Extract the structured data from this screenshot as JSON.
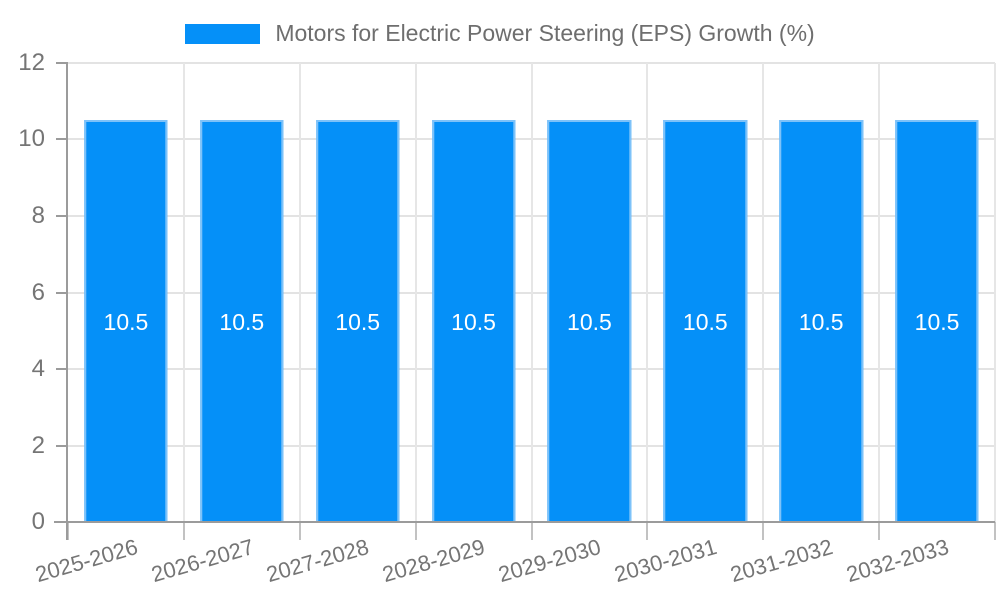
{
  "chart_data": {
    "type": "bar",
    "title": "Motors for Electric Power Steering (EPS) Growth (%)",
    "categories": [
      "2025-2026",
      "2026-2027",
      "2027-2028",
      "2028-2029",
      "2029-2030",
      "2030-2031",
      "2031-2032",
      "2032-2033"
    ],
    "values": [
      10.5,
      10.5,
      10.5,
      10.5,
      10.5,
      10.5,
      10.5,
      10.5
    ],
    "bar_labels": [
      "10.5",
      "10.5",
      "10.5",
      "10.5",
      "10.5",
      "10.5",
      "10.5",
      "10.5"
    ],
    "xlabel": "",
    "ylabel": "",
    "ylim": [
      0,
      12
    ],
    "yticks": [
      0,
      2,
      4,
      6,
      8,
      10,
      12
    ],
    "grid": true,
    "legend_position": "top",
    "colors": {
      "bar_fill": "#0590f8",
      "bar_border": "#7ec2f9",
      "bar_label_text": "#ffffff",
      "gridline": "#e3e3e3",
      "axis_line": "#9b9b9b",
      "tick_text": "#757575",
      "legend_text": "#6e6e6e",
      "background": "#ffffff"
    }
  },
  "legend": {
    "label": "Motors for Electric Power Steering (EPS) Growth (%)"
  }
}
